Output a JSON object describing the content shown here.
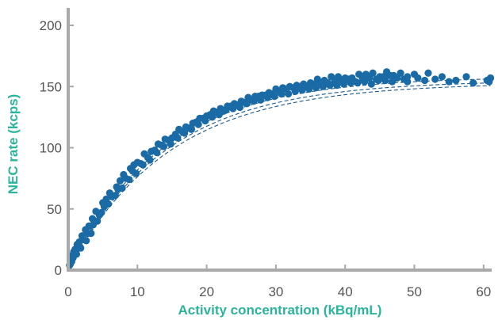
{
  "chart_data": {
    "type": "scatter",
    "title": "",
    "xlabel": "Activity concentration (kBq/mL)",
    "ylabel": "NEC rate (kcps)",
    "xlim": [
      0,
      63
    ],
    "ylim": [
      0,
      205
    ],
    "x_ticks": [
      "0",
      "10",
      "20",
      "30",
      "40",
      "50",
      "60"
    ],
    "y_ticks": [
      "0",
      "50",
      "100",
      "150",
      "200"
    ],
    "grid": false,
    "legend": "none",
    "colors": {
      "points": "#1a6aa5",
      "fit_lines": "#1a5a8c",
      "axis": "#a9a9a9",
      "axis_title": "#2ab59a",
      "tick_text": "#555555"
    },
    "fit_models": [
      {
        "peak": 158,
        "k": 0.073
      },
      {
        "peak": 155,
        "k": 0.071
      },
      {
        "peak": 153,
        "k": 0.069
      }
    ],
    "series": [
      {
        "x": [
          0.2,
          0.4,
          0.6,
          0.8,
          1.0,
          1.3,
          1.6,
          2.0,
          2.5,
          3.0,
          3.5,
          4.0,
          5.0,
          5.5,
          6.0,
          7.0,
          7.5,
          8.0,
          9.0,
          9.5,
          10.0,
          11.0,
          12.0,
          13.0,
          14.0,
          15.0,
          16.0,
          17.0,
          18.0,
          19.0,
          20.0,
          21.0,
          22.0,
          23.0,
          24.0,
          25.0,
          26.0,
          27.0,
          28.0,
          29.0,
          30.0,
          31.0,
          32.0,
          33.0,
          34.0,
          35.0,
          36.0,
          37.0,
          38.0,
          39.0,
          40.0,
          41.0,
          42.0,
          43.0,
          44.0,
          45.0,
          46.0,
          47.0,
          48.0,
          49.0,
          50.0,
          52.0,
          54.0,
          57.5,
          61.0
        ],
        "y": [
          4,
          8,
          12,
          15,
          17,
          21,
          23,
          28,
          33,
          36,
          42,
          48,
          55,
          58,
          63,
          68,
          73,
          78,
          83,
          86,
          88,
          95,
          97,
          103,
          107,
          108,
          115,
          117,
          120,
          124,
          126,
          130,
          132,
          134,
          136,
          138,
          141,
          142,
          143,
          145,
          148,
          149,
          150,
          151,
          152,
          153,
          156,
          155,
          158,
          158,
          157,
          157,
          160,
          160,
          161,
          158,
          162,
          159,
          161,
          158,
          160,
          161,
          158,
          158,
          157
        ]
      },
      {
        "x": [
          0.3,
          0.7,
          1.1,
          1.5,
          2.2,
          2.8,
          3.6,
          4.5,
          5.2,
          6.3,
          7.2,
          8.3,
          9.3,
          10.5,
          11.5,
          12.5,
          13.5,
          14.5,
          15.5,
          16.5,
          17.5,
          18.5,
          19.5,
          20.5,
          21.5,
          22.5,
          23.5,
          24.5,
          25.5,
          26.5,
          27.5,
          28.5,
          29.5,
          30.5,
          31.5,
          32.5,
          33.5,
          34.5,
          35.5,
          36.5,
          37.5,
          38.5,
          39.5,
          40.5,
          41.5,
          42.5,
          43.5,
          44.5,
          45.5,
          46.5,
          47.5,
          48.5,
          50.5,
          53.0,
          56.0,
          60.5
        ],
        "y": [
          5,
          10,
          14,
          19,
          25,
          30,
          37,
          45,
          52,
          60,
          66,
          75,
          81,
          87,
          92,
          98,
          102,
          106,
          111,
          113,
          116,
          121,
          124,
          127,
          129,
          130,
          134,
          135,
          137,
          139,
          142,
          143,
          144,
          146,
          148,
          149,
          150,
          150,
          152,
          153,
          153,
          154,
          155,
          156,
          154,
          157,
          157,
          156,
          158,
          159,
          157,
          156,
          157,
          156,
          155,
          155
        ]
      },
      {
        "x": [
          0.5,
          1.2,
          1.8,
          2.6,
          3.3,
          4.2,
          4.8,
          5.8,
          6.8,
          7.8,
          8.8,
          9.8,
          10.8,
          11.8,
          12.8,
          13.8,
          14.8,
          15.8,
          16.8,
          17.8,
          18.8,
          19.8,
          20.8,
          21.8,
          22.8,
          23.8,
          24.8,
          25.8,
          26.8,
          27.8,
          28.8,
          29.8,
          30.8,
          31.8,
          32.8,
          33.8,
          34.8,
          35.8,
          36.8,
          37.8,
          38.8,
          39.8,
          40.8,
          41.8,
          42.8,
          43.8,
          44.8,
          45.8,
          46.8,
          49.0,
          51.5,
          55.0,
          58.5,
          60.8
        ],
        "y": [
          7,
          13,
          18,
          24,
          30,
          40,
          47,
          54,
          61,
          67,
          74,
          79,
          86,
          90,
          96,
          101,
          103,
          108,
          112,
          115,
          119,
          122,
          125,
          127,
          131,
          132,
          133,
          136,
          138,
          139,
          141,
          142,
          144,
          144,
          146,
          147,
          148,
          149,
          150,
          151,
          151,
          152,
          153,
          153,
          154,
          152,
          155,
          155,
          154,
          154,
          155,
          154,
          153,
          154
        ]
      }
    ]
  }
}
